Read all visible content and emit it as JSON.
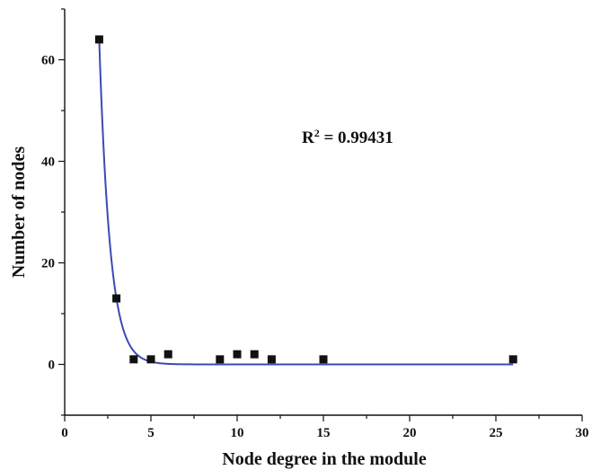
{
  "chart_data": {
    "type": "scatter",
    "title": "",
    "xlabel": "Node degree in the module",
    "ylabel": "Number of nodes",
    "xlim": [
      0,
      30
    ],
    "ylim": [
      -10,
      70
    ],
    "xticks": [
      0,
      5,
      10,
      15,
      20,
      25,
      30
    ],
    "yticks": [
      0,
      20,
      40,
      60
    ],
    "grid": false,
    "legend": "none",
    "points": {
      "x": [
        2,
        3,
        4,
        5,
        6,
        9,
        10,
        11,
        12,
        15,
        26
      ],
      "y": [
        64,
        13,
        1,
        1,
        2,
        1,
        2,
        2,
        1,
        1,
        1
      ]
    },
    "fit": {
      "type": "exponential",
      "color": "#3a4bb5"
    },
    "marker_color": "#111111",
    "annotation": {
      "prefix": "R",
      "sup": "2",
      "suffix": " = 0.99431"
    }
  }
}
